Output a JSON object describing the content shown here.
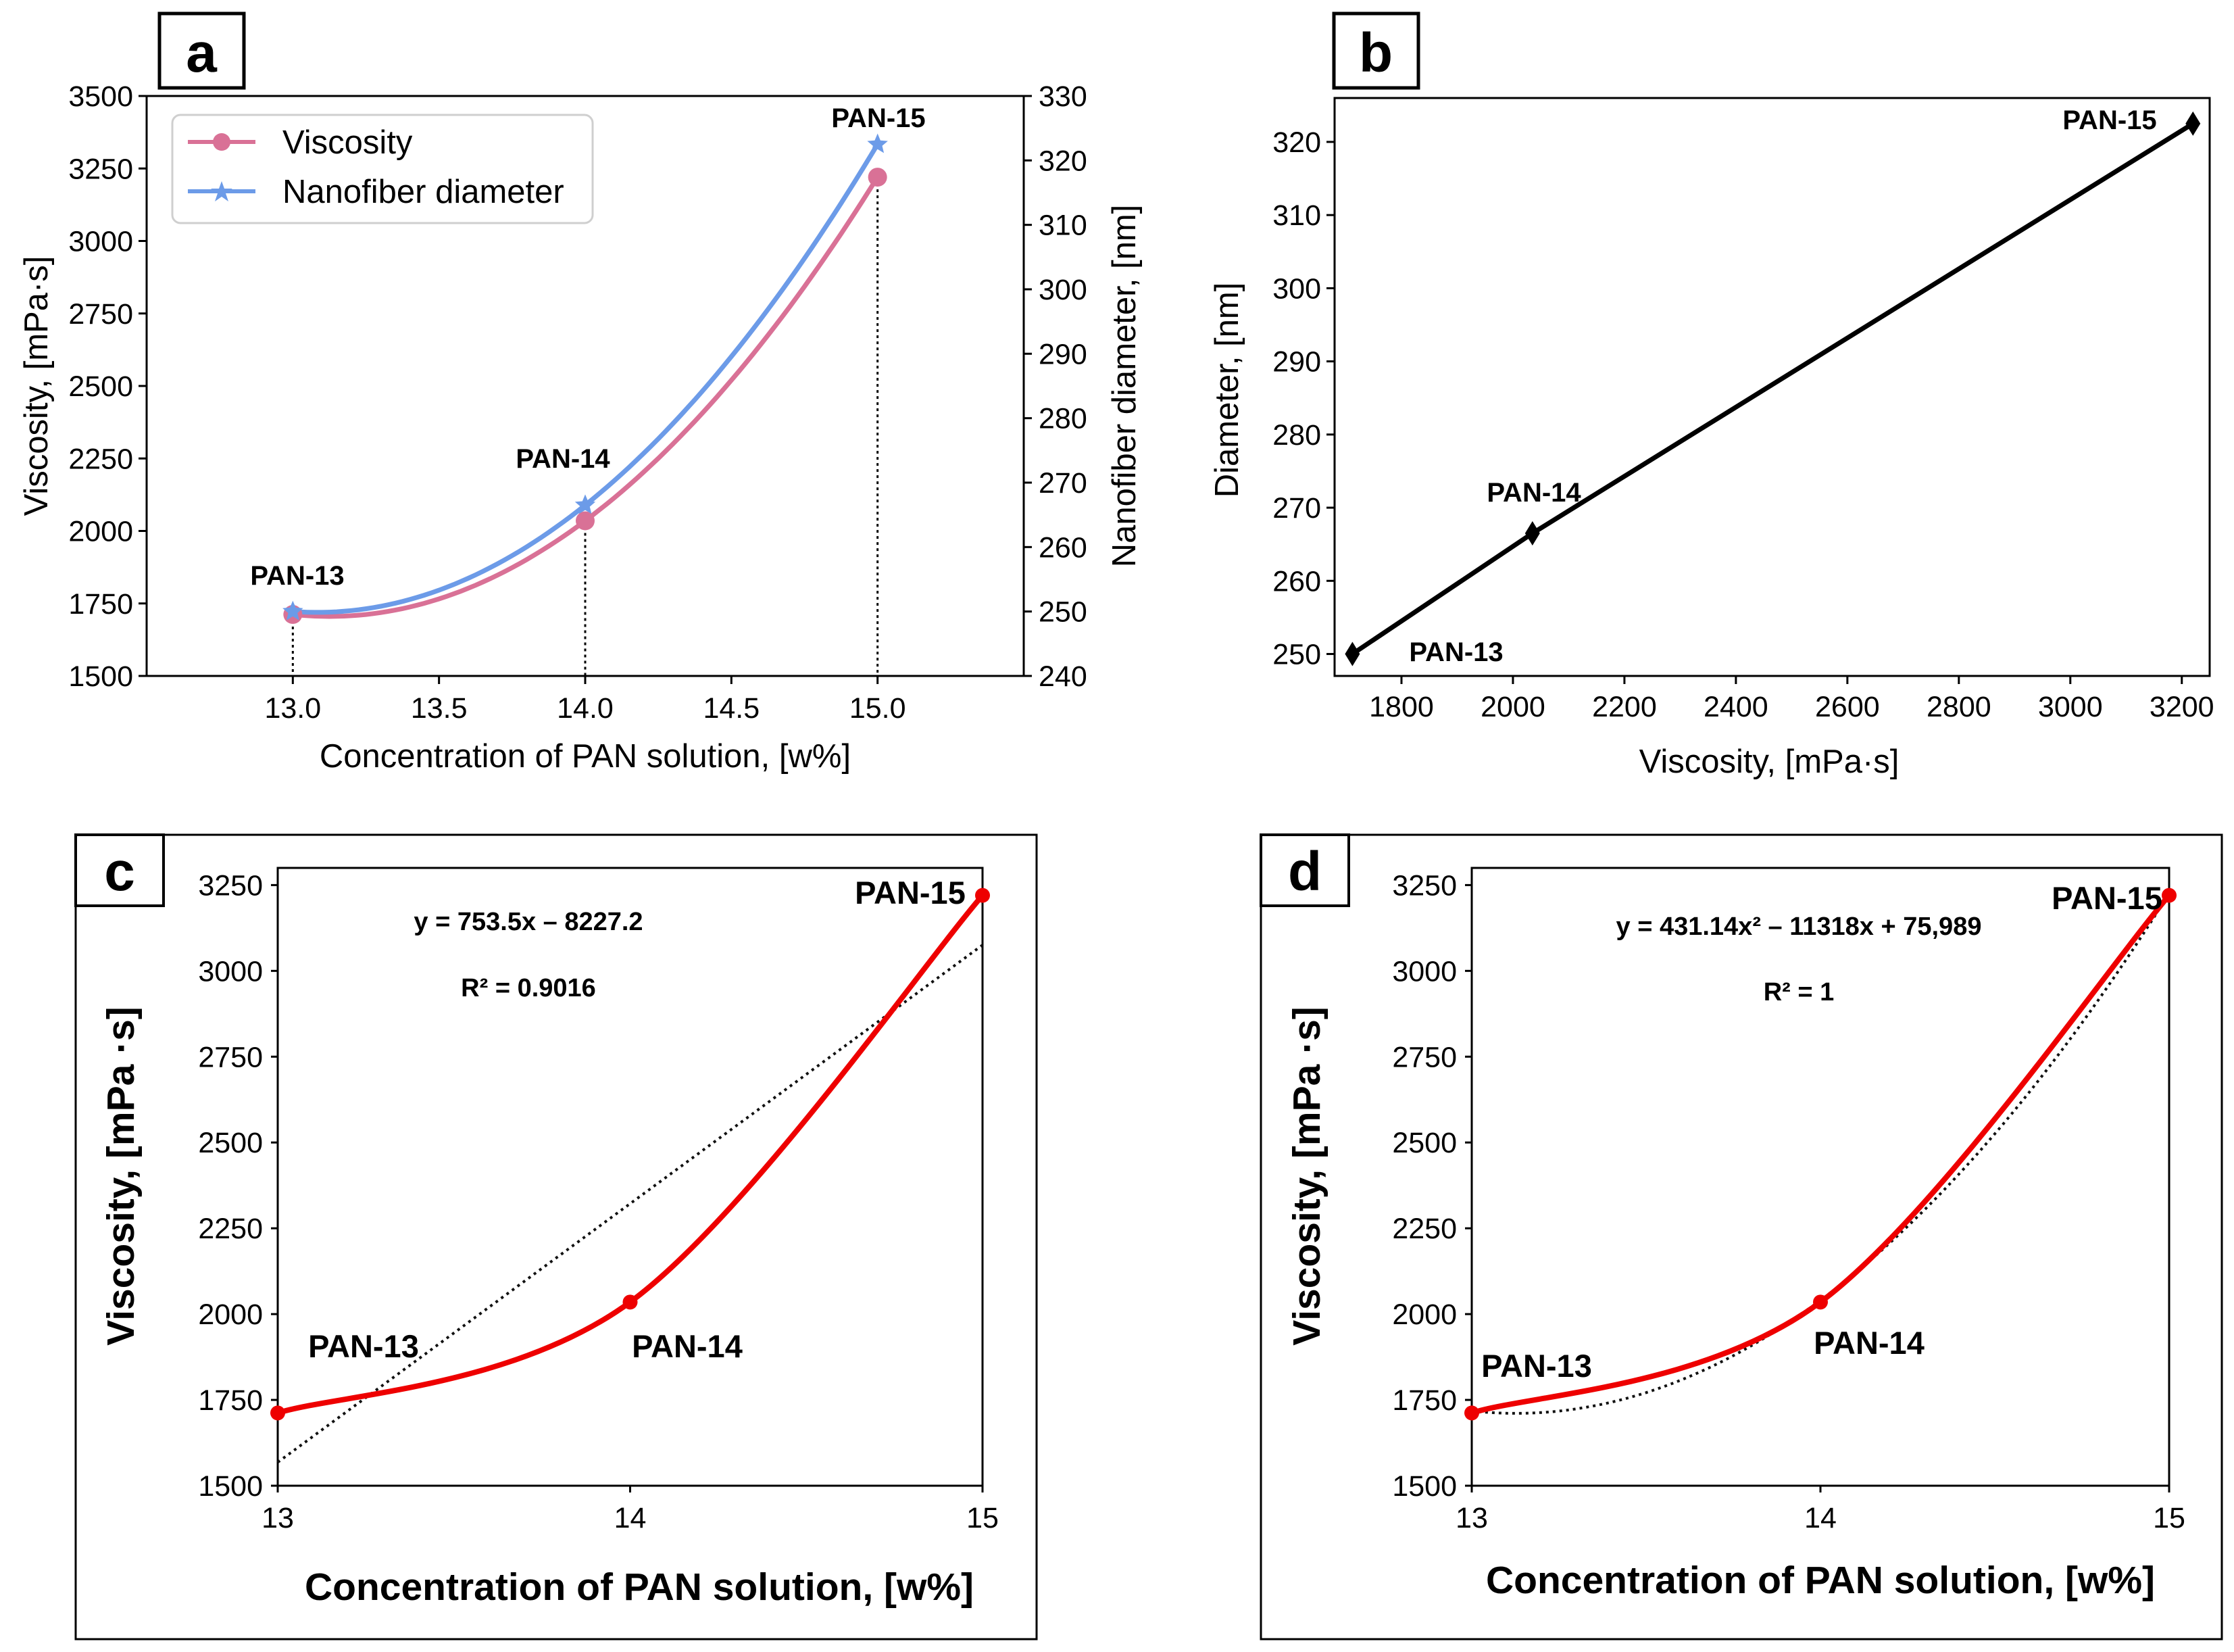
{
  "colors": {
    "viscosity": "#d97196",
    "diameter": "#6c9be8",
    "black": "#000000",
    "red": "#ee0000",
    "trend": "#111111"
  },
  "panels": {
    "a": {
      "letter": "a"
    },
    "b": {
      "letter": "b"
    },
    "c": {
      "letter": "c",
      "equation": "y = 753.5x – 8227.2",
      "r2": "R² = 0.9016"
    },
    "d": {
      "letter": "d",
      "equation": "y = 431.14x² – 11318x + 75,989",
      "r2": "R² = 1"
    }
  },
  "chart_data": [
    {
      "panel": "a",
      "type": "line",
      "x": [
        13.0,
        14.0,
        15.0
      ],
      "series": [
        {
          "name": "Viscosity",
          "axis": "left",
          "values": [
            1712,
            2035,
            3220
          ],
          "marker": "circle"
        },
        {
          "name": "Nanofiber diameter",
          "axis": "right",
          "values": [
            250,
            266.5,
            322.5
          ],
          "marker": "star"
        }
      ],
      "point_labels": [
        "PAN-13",
        "PAN-14",
        "PAN-15"
      ],
      "xlabel": "Concentration of PAN solution, [w%]",
      "ylabel": "Viscosity, [mPa·s]",
      "ylabel_right": "Nanofiber diameter, [nm]",
      "xlim": [
        12.5,
        15.5
      ],
      "ylim": [
        1500,
        3500
      ],
      "ylim_right": [
        240,
        330
      ],
      "xticks": [
        "13.0",
        "13.5",
        "14.0",
        "14.5",
        "15.0"
      ],
      "yticks": [
        "1500",
        "1750",
        "2000",
        "2250",
        "2500",
        "2750",
        "3000",
        "3250",
        "3500"
      ],
      "yticks_right": [
        "240",
        "250",
        "260",
        "270",
        "280",
        "290",
        "300",
        "310",
        "320",
        "330"
      ],
      "legend": [
        "Viscosity",
        "Nanofiber diameter"
      ],
      "legend_position": "top-left"
    },
    {
      "panel": "b",
      "type": "line",
      "x": [
        1712,
        2035,
        3220
      ],
      "series": [
        {
          "name": "Diameter",
          "values": [
            250,
            266.5,
            322.5
          ],
          "marker": "diamond"
        }
      ],
      "point_labels": [
        "PAN-13",
        "PAN-14",
        "PAN-15"
      ],
      "xlabel": "Viscosity, [mPa·s]",
      "ylabel": "Diameter, [nm]",
      "xlim": [
        1680,
        3250
      ],
      "ylim": [
        247,
        326
      ],
      "xticks": [
        "1800",
        "2000",
        "2200",
        "2400",
        "2600",
        "2800",
        "3000",
        "3200"
      ],
      "yticks": [
        "250",
        "260",
        "270",
        "280",
        "290",
        "300",
        "310",
        "320"
      ]
    },
    {
      "panel": "c",
      "type": "line",
      "x": [
        13,
        14,
        15
      ],
      "series": [
        {
          "name": "Viscosity",
          "values": [
            1712,
            2035,
            3220
          ],
          "marker": "circle"
        },
        {
          "name": "Linear trend",
          "values": [
            1568.3,
            2321.8,
            3075.3
          ],
          "style": "dotted"
        }
      ],
      "point_labels": [
        "PAN-13",
        "PAN-14",
        "PAN-15"
      ],
      "xlabel": "Concentration of PAN solution, [w%]",
      "ylabel": "Viscosity, [mPa ·s]",
      "xlim": [
        13,
        15
      ],
      "ylim": [
        1500,
        3300
      ],
      "xticks": [
        "13",
        "14",
        "15"
      ],
      "yticks": [
        "1500",
        "1750",
        "2000",
        "2250",
        "2500",
        "2750",
        "3000",
        "3250"
      ]
    },
    {
      "panel": "d",
      "type": "line",
      "x": [
        13,
        14,
        15
      ],
      "series": [
        {
          "name": "Viscosity",
          "values": [
            1712,
            2035,
            3220
          ],
          "marker": "circle"
        },
        {
          "name": "Polynomial trend",
          "coefficients": [
            431.14,
            -11318,
            75989
          ],
          "style": "dotted"
        }
      ],
      "point_labels": [
        "PAN-13",
        "PAN-14",
        "PAN-15"
      ],
      "xlabel": "Concentration of PAN solution, [w%]",
      "ylabel": "Viscosity, [mPa ·s]",
      "xlim": [
        13,
        15
      ],
      "ylim": [
        1500,
        3300
      ],
      "xticks": [
        "13",
        "14",
        "15"
      ],
      "yticks": [
        "1500",
        "1750",
        "2000",
        "2250",
        "2500",
        "2750",
        "3000",
        "3250"
      ]
    }
  ]
}
